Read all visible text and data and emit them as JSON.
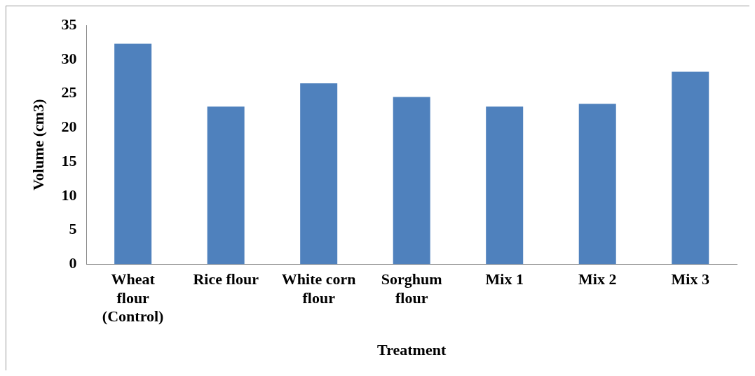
{
  "chart_data": {
    "type": "bar",
    "xlabel": "Treatment",
    "ylabel": "Volume (cm3)",
    "categories": [
      "Wheat flour (Control)",
      "Rice flour",
      "White corn flour",
      "Sorghum flour",
      "Mix 1",
      "Mix 2",
      "Mix 3"
    ],
    "values": [
      32.3,
      23.1,
      26.5,
      24.5,
      23.1,
      23.5,
      28.2
    ],
    "color": "#4f81bd",
    "ylim": [
      0,
      35
    ],
    "yticks": [
      0,
      5,
      10,
      15,
      20,
      25,
      30,
      35
    ],
    "grid": false,
    "legend": false
  }
}
